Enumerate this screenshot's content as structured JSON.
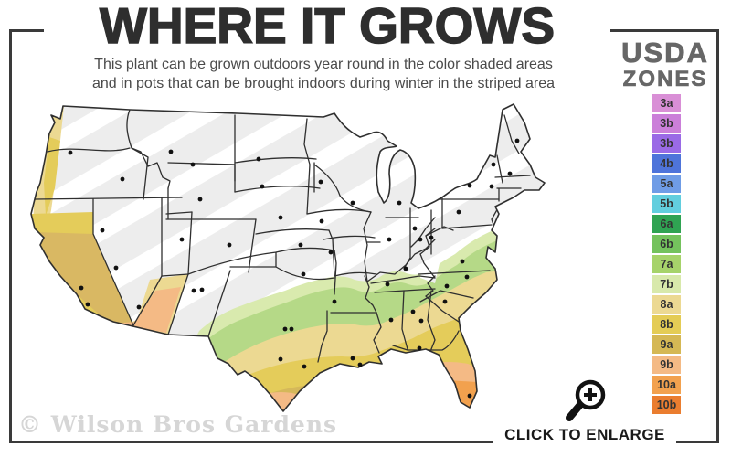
{
  "header": {
    "title": "WHERE IT GROWS",
    "subtitle_line1": "This plant can be grown outdoors year round in the color shaded areas",
    "subtitle_line2": "and in pots that can be brought indoors during winter in the striped area"
  },
  "legend": {
    "title_line1": "USDA",
    "title_line2": "ZONES",
    "zones": [
      {
        "label": "3a",
        "color": "#d98fd6"
      },
      {
        "label": "3b",
        "color": "#cb7fd9"
      },
      {
        "label": "3b",
        "color": "#9a6ae6"
      },
      {
        "label": "4b",
        "color": "#4e74da"
      },
      {
        "label": "5a",
        "color": "#6f9ce6"
      },
      {
        "label": "5b",
        "color": "#62cede"
      },
      {
        "label": "6a",
        "color": "#2fa352"
      },
      {
        "label": "6b",
        "color": "#74c25d"
      },
      {
        "label": "7a",
        "color": "#a6d36a"
      },
      {
        "label": "7b",
        "color": "#d8e9ab"
      },
      {
        "label": "8a",
        "color": "#ecd992"
      },
      {
        "label": "8b",
        "color": "#e4cc55"
      },
      {
        "label": "9a",
        "color": "#d5b854"
      },
      {
        "label": "9b",
        "color": "#f4ba85"
      },
      {
        "label": "10a",
        "color": "#f2a14e"
      },
      {
        "label": "10b",
        "color": "#ea7d2f"
      }
    ]
  },
  "map": {
    "striped_region_color": "#ededed",
    "stripe_color": "#ffffff",
    "border_color": "#2f2f2f",
    "ocean_color": "#ffffff",
    "icon": "us-map"
  },
  "watermark": "© Wilson Bros Gardens",
  "enlarge": {
    "label": "CLICK TO ENLARGE",
    "icon": "magnifier-plus-icon"
  }
}
